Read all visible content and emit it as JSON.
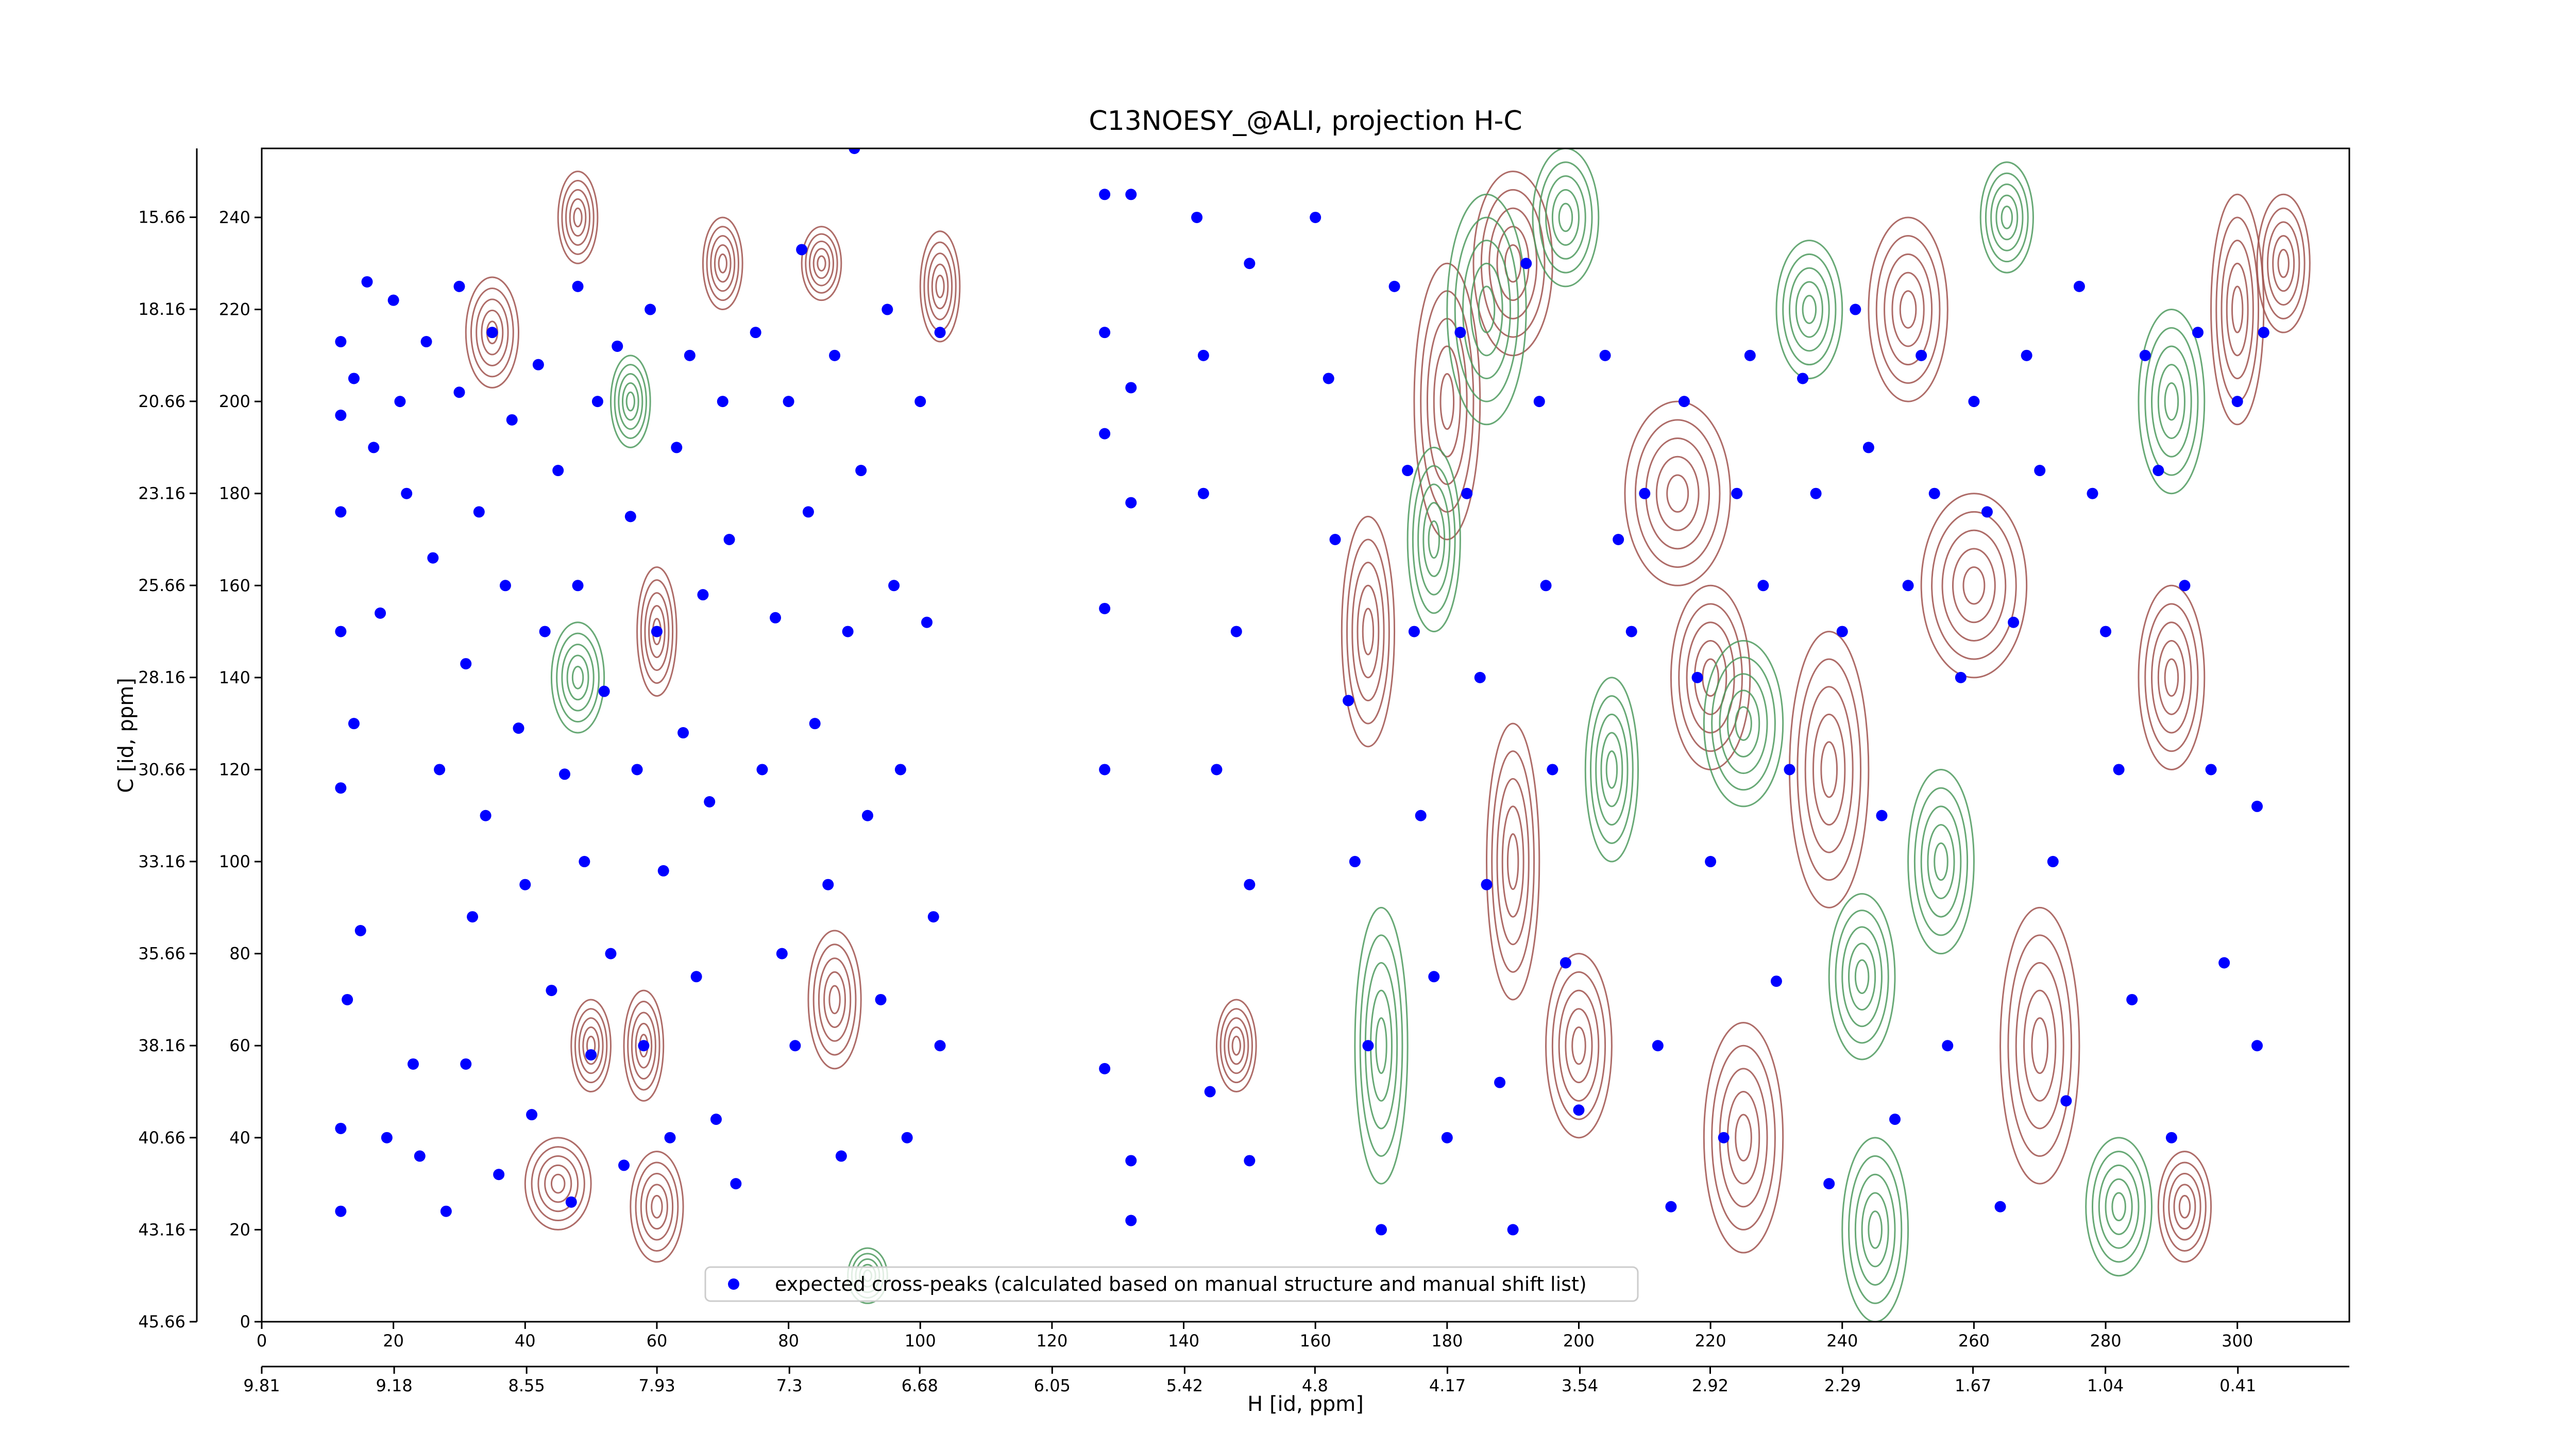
{
  "chart_data": {
    "type": "scatter",
    "title": "C13NOESY_@ALI, projection H-C",
    "xlabel": "H [id, ppm]",
    "ylabel": "C [id, ppm]",
    "xlim": [
      0,
      317
    ],
    "ylim": [
      0,
      255
    ],
    "xticks": [
      0,
      20,
      40,
      60,
      80,
      100,
      120,
      140,
      160,
      180,
      200,
      220,
      240,
      260,
      280,
      300
    ],
    "yticks": [
      0,
      20,
      40,
      60,
      80,
      100,
      120,
      140,
      160,
      180,
      200,
      220,
      240
    ],
    "x2lim": [
      9.81,
      -0.12
    ],
    "x2ticks": [
      9.81,
      9.18,
      8.55,
      7.93,
      7.3,
      6.68,
      6.05,
      5.42,
      4.8,
      4.17,
      3.54,
      2.92,
      2.29,
      1.67,
      1.04,
      0.41
    ],
    "y2lim": [
      45.66,
      13.79
    ],
    "y2ticks": [
      45.66,
      43.16,
      40.66,
      38.16,
      35.66,
      33.16,
      30.66,
      28.16,
      25.66,
      23.16,
      20.66,
      18.16,
      15.66
    ],
    "legend": "lower center",
    "series": [
      {
        "name": "expected cross-peaks (calculated based on manual structure and manual shift list)",
        "color": "#0000ff",
        "x": [
          12,
          12,
          12,
          12,
          12,
          12,
          12,
          13,
          14,
          14,
          15,
          16,
          17,
          18,
          19,
          20,
          21,
          22,
          23,
          24,
          25,
          26,
          27,
          28,
          30,
          30,
          31,
          31,
          32,
          33,
          34,
          35,
          36,
          37,
          38,
          39,
          40,
          41,
          42,
          43,
          44,
          45,
          46,
          47,
          48,
          48,
          49,
          50,
          51,
          52,
          53,
          54,
          55,
          56,
          57,
          58,
          59,
          60,
          61,
          62,
          63,
          64,
          65,
          66,
          67,
          68,
          69,
          70,
          71,
          72,
          75,
          76,
          78,
          79,
          80,
          81,
          82,
          83,
          84,
          86,
          87,
          88,
          89,
          90,
          91,
          92,
          94,
          95,
          96,
          97,
          98,
          100,
          101,
          102,
          103,
          103,
          128,
          128,
          128,
          128,
          128,
          128,
          132,
          132,
          132,
          132,
          132,
          142,
          143,
          143,
          144,
          145,
          148,
          150,
          150,
          150,
          160,
          162,
          163,
          165,
          166,
          168,
          170,
          172,
          174,
          175,
          176,
          178,
          180,
          182,
          183,
          185,
          186,
          188,
          190,
          192,
          194,
          195,
          196,
          198,
          200,
          204,
          206,
          208,
          210,
          212,
          214,
          216,
          218,
          220,
          222,
          224,
          226,
          228,
          230,
          232,
          234,
          236,
          238,
          240,
          242,
          244,
          246,
          248,
          250,
          252,
          254,
          256,
          258,
          260,
          262,
          264,
          266,
          268,
          270,
          272,
          274,
          276,
          278,
          280,
          282,
          284,
          286,
          288,
          290,
          292,
          294,
          296,
          298,
          300,
          303,
          303,
          304
        ],
        "values": [
          213,
          197,
          176,
          150,
          116,
          42,
          24,
          70,
          205,
          130,
          85,
          226,
          190,
          154,
          40,
          222,
          200,
          180,
          56,
          36,
          213,
          166,
          120,
          24,
          225,
          202,
          143,
          56,
          88,
          176,
          110,
          215,
          32,
          160,
          196,
          129,
          95,
          45,
          208,
          150,
          72,
          185,
          119,
          26,
          225,
          160,
          100,
          58,
          200,
          137,
          80,
          212,
          34,
          175,
          120,
          60,
          220,
          150,
          98,
          40,
          190,
          128,
          210,
          75,
          158,
          113,
          44,
          200,
          170,
          30,
          215,
          120,
          153,
          80,
          200,
          60,
          233,
          176,
          130,
          95,
          210,
          36,
          150,
          255,
          185,
          110,
          70,
          220,
          160,
          120,
          40,
          200,
          152,
          88,
          215,
          60,
          245,
          215,
          193,
          155,
          120,
          55,
          245,
          203,
          178,
          22,
          35,
          240,
          210,
          180,
          50,
          120,
          150,
          230,
          95,
          35,
          240,
          205,
          170,
          135,
          100,
          60,
          20,
          225,
          185,
          150,
          110,
          75,
          40,
          215,
          180,
          140,
          95,
          52,
          20,
          230,
          200,
          160,
          120,
          78,
          46,
          210,
          170,
          150,
          180,
          60,
          25,
          200,
          140,
          100,
          40,
          180,
          210,
          160,
          74,
          120,
          205,
          180,
          30,
          150,
          220,
          190,
          110,
          44,
          160,
          210,
          180,
          60,
          140,
          200,
          176,
          25,
          152,
          210,
          185,
          100,
          48,
          225,
          180,
          150,
          120,
          70,
          210,
          185,
          40,
          160,
          215,
          120,
          78,
          200,
          60,
          112,
          215
        ]
      }
    ],
    "contours": [
      {
        "color": "#a0524d",
        "peaks": [
          [
            35,
            215,
            4,
            12
          ],
          [
            48,
            240,
            3,
            10
          ],
          [
            60,
            150,
            3,
            14
          ],
          [
            70,
            230,
            3,
            10
          ],
          [
            85,
            230,
            3,
            8
          ],
          [
            87,
            70,
            4,
            15
          ],
          [
            50,
            60,
            3,
            10
          ],
          [
            58,
            60,
            3,
            12
          ],
          [
            45,
            30,
            5,
            10
          ],
          [
            60,
            25,
            4,
            12
          ],
          [
            103,
            225,
            3,
            12
          ],
          [
            148,
            60,
            3,
            10
          ],
          [
            168,
            150,
            4,
            25
          ],
          [
            180,
            200,
            5,
            30
          ],
          [
            190,
            100,
            4,
            30
          ],
          [
            200,
            60,
            5,
            20
          ],
          [
            190,
            230,
            6,
            20
          ],
          [
            215,
            180,
            8,
            20
          ],
          [
            225,
            40,
            6,
            25
          ],
          [
            238,
            120,
            6,
            30
          ],
          [
            250,
            220,
            6,
            20
          ],
          [
            260,
            160,
            8,
            20
          ],
          [
            270,
            60,
            6,
            30
          ],
          [
            290,
            140,
            5,
            20
          ],
          [
            300,
            220,
            4,
            25
          ],
          [
            307,
            230,
            4,
            15
          ],
          [
            220,
            140,
            6,
            20
          ],
          [
            292,
            25,
            4,
            12
          ]
        ]
      },
      {
        "color": "#4e9a5e",
        "peaks": [
          [
            48,
            140,
            4,
            12
          ],
          [
            56,
            200,
            3,
            10
          ],
          [
            92,
            10,
            3,
            6
          ],
          [
            170,
            60,
            4,
            30
          ],
          [
            178,
            170,
            4,
            20
          ],
          [
            186,
            220,
            6,
            25
          ],
          [
            198,
            240,
            5,
            15
          ],
          [
            205,
            120,
            4,
            20
          ],
          [
            225,
            130,
            6,
            18
          ],
          [
            235,
            220,
            5,
            15
          ],
          [
            245,
            20,
            5,
            20
          ],
          [
            255,
            100,
            5,
            20
          ],
          [
            282,
            25,
            5,
            15
          ],
          [
            290,
            200,
            5,
            20
          ],
          [
            265,
            240,
            4,
            12
          ],
          [
            243,
            75,
            5,
            18
          ]
        ]
      }
    ]
  }
}
